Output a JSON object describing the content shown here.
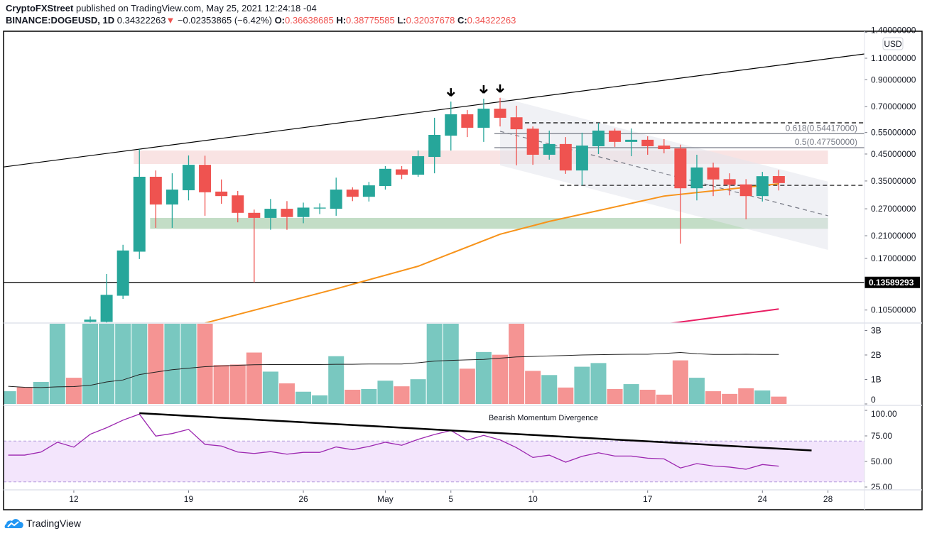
{
  "header": {
    "publisher": "CryptoFXStreet",
    "published_text": " published on TradingView.com, May 25, 2021 12:24:18 -04",
    "symbol": "BINANCE:DOGEUSD, 1D",
    "last": "0.34322263",
    "change_arrow": "▼",
    "change": "−0.02353865 (−6.42%)",
    "o_label": "O:",
    "o": "0.36638685",
    "h_label": "H:",
    "h": "0.38775585",
    "l_label": "L:",
    "l": "0.32037678",
    "c_label": "C:",
    "c": "0.34322263"
  },
  "footer": {
    "brand": "TradingView",
    "logo_icon": "tradingview-cloud-icon"
  },
  "colors": {
    "up": "#26a69a",
    "down": "#ef5350",
    "ma50": "#f7931a",
    "ma200": "#e91e63",
    "rsi": "#9c27b0",
    "rsi_band": "#f3e5fc",
    "resistance_zone": "#f9e3e3",
    "support_zone": "#c3ddc6",
    "channel": "#e4e6ec"
  },
  "chart_data": [
    {
      "type": "candlestick",
      "pane": "price",
      "scale": "log",
      "currency_badge": "USD",
      "y_ticks": [
        "1.40000000",
        "1.10000000",
        "0.90000000",
        "0.70000000",
        "0.55000000",
        "0.45000000",
        "0.35000000",
        "0.27000000",
        "0.21000000",
        "0.17000000",
        "0.10500000"
      ],
      "y_tick_values": [
        1.4,
        1.1,
        0.9,
        0.7,
        0.55,
        0.45,
        0.35,
        0.27,
        0.21,
        0.17,
        0.105
      ],
      "x_ticks": [
        {
          "label": "12",
          "date": "2021-04-12"
        },
        {
          "label": "19",
          "date": "2021-04-19"
        },
        {
          "label": "26",
          "date": "2021-04-26"
        },
        {
          "label": "May",
          "date": "2021-05-01"
        },
        {
          "label": "5",
          "date": "2021-05-05"
        },
        {
          "label": "10",
          "date": "2021-05-10"
        },
        {
          "label": "17",
          "date": "2021-05-17"
        },
        {
          "label": "24",
          "date": "2021-05-24"
        },
        {
          "label": "28",
          "date": "2021-05-28"
        }
      ],
      "candles_fields": [
        "date",
        "open",
        "high",
        "low",
        "close"
      ],
      "candles": [
        [
          "2021-04-13",
          0.094,
          0.099,
          0.09,
          0.096
        ],
        [
          "2021-04-14",
          0.094,
          0.147,
          0.09,
          0.121
        ],
        [
          "2021-04-15",
          0.12,
          0.193,
          0.1165,
          0.183
        ],
        [
          "2021-04-16",
          0.181,
          0.471,
          0.169,
          0.364
        ],
        [
          "2021-04-17",
          0.364,
          0.386,
          0.226,
          0.281
        ],
        [
          "2021-04-18",
          0.281,
          0.376,
          0.226,
          0.323
        ],
        [
          "2021-04-19",
          0.321,
          0.444,
          0.292,
          0.407
        ],
        [
          "2021-04-20",
          0.407,
          0.443,
          0.253,
          0.315
        ],
        [
          "2021-04-21",
          0.317,
          0.355,
          0.283,
          0.304
        ],
        [
          "2021-04-22",
          0.306,
          0.319,
          0.238,
          0.26
        ],
        [
          "2021-04-23",
          0.26,
          0.268,
          0.136,
          0.248
        ],
        [
          "2021-04-24",
          0.248,
          0.296,
          0.222,
          0.27
        ],
        [
          "2021-04-25",
          0.27,
          0.29,
          0.222,
          0.25
        ],
        [
          "2021-04-26",
          0.25,
          0.286,
          0.236,
          0.273
        ],
        [
          "2021-04-27",
          0.272,
          0.284,
          0.257,
          0.273
        ],
        [
          "2021-04-28",
          0.27,
          0.361,
          0.253,
          0.323
        ],
        [
          "2021-04-29",
          0.323,
          0.33,
          0.29,
          0.302
        ],
        [
          "2021-04-30",
          0.302,
          0.347,
          0.289,
          0.336
        ],
        [
          "2021-05-01",
          0.334,
          0.402,
          0.323,
          0.392
        ],
        [
          "2021-05-02",
          0.39,
          0.402,
          0.356,
          0.371
        ],
        [
          "2021-05-03",
          0.371,
          0.465,
          0.364,
          0.441
        ],
        [
          "2021-05-04",
          0.438,
          0.631,
          0.376,
          0.538
        ],
        [
          "2021-05-05",
          0.534,
          0.734,
          0.465,
          0.652
        ],
        [
          "2021-05-06",
          0.652,
          0.678,
          0.527,
          0.575
        ],
        [
          "2021-05-07",
          0.575,
          0.754,
          0.504,
          0.687
        ],
        [
          "2021-05-08",
          0.687,
          0.76,
          0.582,
          0.631
        ],
        [
          "2021-05-09",
          0.634,
          0.706,
          0.405,
          0.567
        ],
        [
          "2021-05-10",
          0.57,
          0.582,
          0.407,
          0.447
        ],
        [
          "2021-05-11",
          0.447,
          0.56,
          0.427,
          0.494
        ],
        [
          "2021-05-12",
          0.494,
          0.527,
          0.374,
          0.386
        ],
        [
          "2021-05-13",
          0.386,
          0.549,
          0.336,
          0.487
        ],
        [
          "2021-05-14",
          0.484,
          0.602,
          0.45,
          0.56
        ],
        [
          "2021-05-15",
          0.56,
          0.571,
          0.481,
          0.504
        ],
        [
          "2021-05-16",
          0.504,
          0.571,
          0.441,
          0.514
        ],
        [
          "2021-05-17",
          0.514,
          0.531,
          0.447,
          0.484
        ],
        [
          "2021-05-18",
          0.487,
          0.517,
          0.453,
          0.471
        ],
        [
          "2021-05-19",
          0.474,
          0.491,
          0.195,
          0.327
        ],
        [
          "2021-05-20",
          0.327,
          0.447,
          0.292,
          0.397
        ],
        [
          "2021-05-21",
          0.397,
          0.415,
          0.304,
          0.355
        ],
        [
          "2021-05-22",
          0.356,
          0.376,
          0.306,
          0.338
        ],
        [
          "2021-05-23",
          0.339,
          0.356,
          0.245,
          0.304
        ],
        [
          "2021-05-24",
          0.304,
          0.381,
          0.289,
          0.366
        ],
        [
          "2021-05-25",
          0.36638685,
          0.38775585,
          0.32037678,
          0.34322263
        ]
      ],
      "ma50": [
        [
          "2021-04-20",
          0.093
        ],
        [
          "2021-04-28",
          0.128
        ],
        [
          "2021-05-03",
          0.158
        ],
        [
          "2021-05-08",
          0.213
        ],
        [
          "2021-05-11",
          0.24
        ],
        [
          "2021-05-18",
          0.304
        ],
        [
          "2021-05-25",
          0.341
        ]
      ],
      "ma200": [
        [
          "2021-05-18",
          0.092
        ],
        [
          "2021-05-25",
          0.106
        ]
      ],
      "trendline": [
        [
          "2021-04-16",
          0.471
        ],
        [
          "2021-05-07",
          0.718
        ]
      ],
      "support_line": {
        "value": 0.13589293,
        "label": "0.13589293"
      },
      "dashed_levels": [
        {
          "from": "2021-05-09",
          "value": 0.602
        },
        {
          "from": "2021-05-12",
          "value": 0.336
        }
      ],
      "fib_levels": [
        {
          "from": "2021-05-08",
          "value": 0.54417,
          "label": "0.618(0.54417000)"
        },
        {
          "from": "2021-05-08",
          "value": 0.4775,
          "label": "0.5(0.47750000)"
        }
      ],
      "resistance_zone": {
        "from": "2021-04-16",
        "to": "2021-05-28",
        "low": 0.41,
        "high": 0.465
      },
      "support_zone": {
        "from": "2021-04-17",
        "to": "2021-05-28",
        "low": 0.224,
        "high": 0.248
      },
      "channel": {
        "from": "2021-05-08",
        "to": "2021-05-28",
        "top": [
          0.764,
          0.348
        ],
        "bottom": [
          0.405,
          0.184
        ]
      },
      "arrows": [
        "2021-05-05",
        "2021-05-07",
        "2021-05-08"
      ]
    },
    {
      "type": "bar",
      "pane": "volume",
      "start_date": "2021-04-08",
      "y_ticks": [
        "3B",
        "2B",
        "1B",
        "0"
      ],
      "y_tick_values": [
        3,
        2,
        1,
        0
      ],
      "unit": "billions",
      "values": [
        0.52,
        0.68,
        0.9,
        3.5,
        1.07,
        3.5,
        3.5,
        3.5,
        3.5,
        3.5,
        3.5,
        3.5,
        3.5,
        1.59,
        1.61,
        2.1,
        1.32,
        0.84,
        0.5,
        0.35,
        1.95,
        0.58,
        0.61,
        0.95,
        0.72,
        1.01,
        3.5,
        3.5,
        1.44,
        2.12,
        2.01,
        3.5,
        1.35,
        1.18,
        0.67,
        1.52,
        1.67,
        0.61,
        0.81,
        0.58,
        0.38,
        1.78,
        1.07,
        0.52,
        0.41,
        0.64,
        0.55,
        0.3
      ],
      "up": [
        1,
        0,
        1,
        1,
        0,
        1,
        1,
        1,
        1,
        0,
        1,
        1,
        0,
        0,
        0,
        0,
        1,
        0,
        1,
        1,
        1,
        0,
        1,
        1,
        0,
        1,
        1,
        1,
        0,
        1,
        0,
        0,
        0,
        1,
        0,
        1,
        1,
        0,
        1,
        0,
        0,
        0,
        1,
        0,
        0,
        0,
        1,
        0
      ],
      "ma": [
        0.72,
        0.68,
        0.67,
        0.7,
        0.71,
        0.76,
        0.9,
        0.98,
        1.2,
        1.3,
        1.4,
        1.46,
        1.52,
        1.55,
        1.58,
        1.6,
        1.61,
        1.61,
        1.61,
        1.61,
        1.62,
        1.62,
        1.63,
        1.63,
        1.63,
        1.68,
        1.75,
        1.78,
        1.8,
        1.82,
        1.87,
        1.92,
        1.94,
        1.96,
        1.98,
        2.0,
        2.01,
        2.02,
        2.03,
        2.03,
        2.06,
        2.1,
        2.05,
        2.02,
        2.02,
        2.03,
        2.02,
        2.02
      ]
    },
    {
      "type": "line",
      "pane": "rsi",
      "start_date": "2021-04-08",
      "y_ticks": [
        "100.00",
        "75.00",
        "50.00",
        "25.00"
      ],
      "y_tick_values": [
        100,
        75,
        50,
        25
      ],
      "band": [
        30,
        70
      ],
      "values": [
        56.2,
        56.2,
        59.2,
        68.8,
        64.0,
        76.6,
        83.0,
        90.4,
        96.3,
        74.8,
        77.3,
        81.4,
        66.7,
        65.1,
        59.2,
        57.8,
        59.6,
        57.1,
        58.9,
        58.9,
        64.2,
        61.5,
        64.7,
        68.8,
        65.8,
        71.6,
        76.4,
        80.3,
        70.9,
        75.5,
        71.1,
        63.5,
        53.9,
        56.2,
        49.3,
        55.0,
        58.5,
        55.3,
        55.3,
        53.2,
        52.5,
        43.6,
        47.9,
        45.6,
        44.5,
        42.4,
        47.0,
        45.4
      ],
      "divergence_line": [
        [
          "2021-04-16",
          97.2
        ],
        [
          "2021-05-27",
          60.8
        ]
      ],
      "annotation": "Bearish Momentum Divergence"
    }
  ]
}
